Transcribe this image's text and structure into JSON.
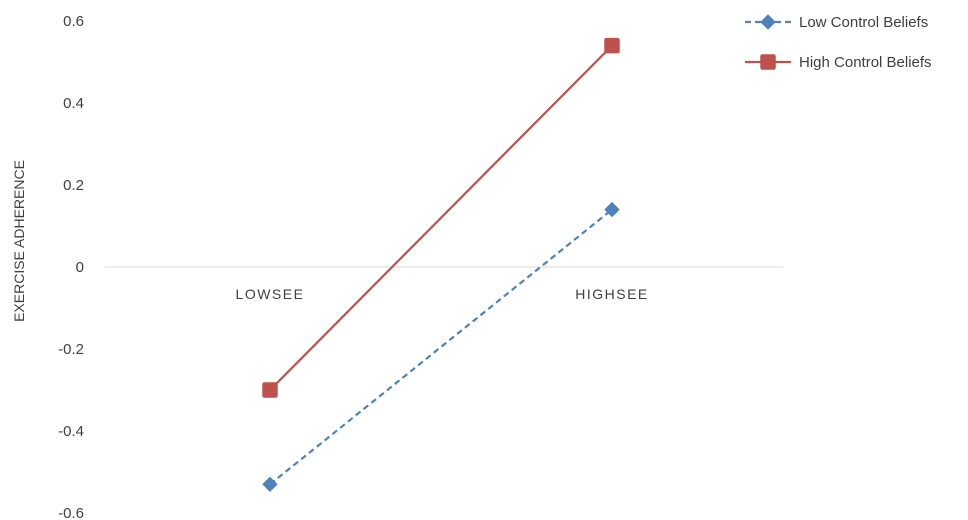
{
  "chart_data": {
    "type": "line",
    "title": "",
    "xlabel": "",
    "ylabel": "EXERCISE ADHERENCE",
    "categories": [
      "LOWSEE",
      "HIGHSEE"
    ],
    "ylim": [
      -0.6,
      0.6
    ],
    "yticks": [
      "0.6",
      "0.4",
      "0.2",
      "0",
      "-0.2",
      "-0.4",
      "-0.6"
    ],
    "ytick_values": [
      0.6,
      0.4,
      0.2,
      0,
      -0.2,
      -0.4,
      -0.6
    ],
    "grid": false,
    "legend_position": "top-right",
    "series": [
      {
        "name": "Low Control Beliefs",
        "values": [
          -0.53,
          0.14
        ],
        "color": "#4f81bd",
        "line_style": "dashed",
        "marker": "diamond"
      },
      {
        "name": "High Control Beliefs",
        "values": [
          -0.3,
          0.54
        ],
        "color": "#c0504d",
        "line_style": "solid",
        "marker": "square"
      }
    ]
  }
}
